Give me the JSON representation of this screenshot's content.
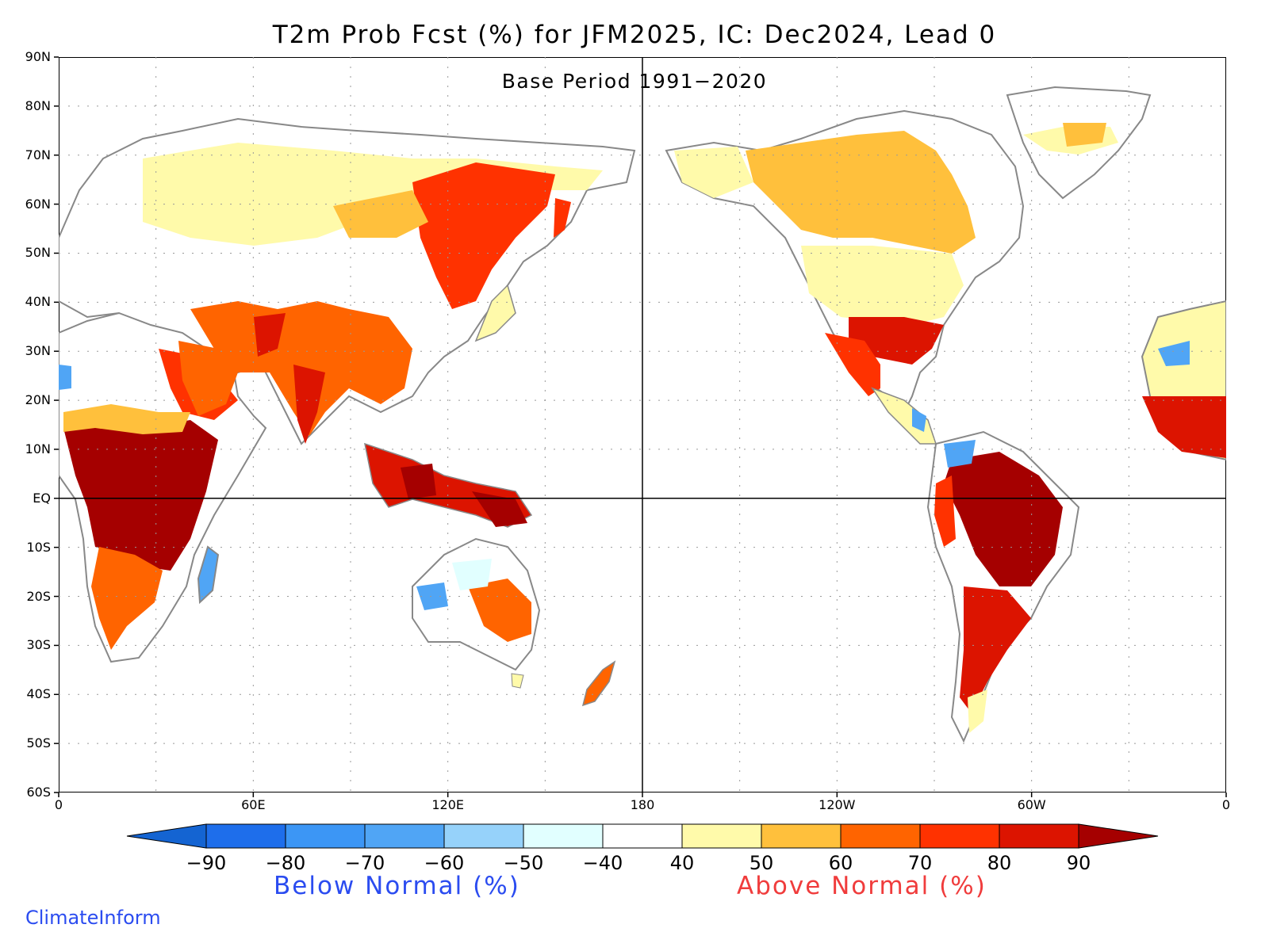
{
  "title": "T2m Prob Fcst (%) for JFM2025, IC: Dec2024, Lead 0",
  "subtitle": "Base Period 1991−2020",
  "map": {
    "projection": "equirectangular",
    "lon_range": [
      0,
      360
    ],
    "lat_range": [
      -60,
      90
    ],
    "lat_ticks": [
      "90N",
      "80N",
      "70N",
      "60N",
      "50N",
      "40N",
      "30N",
      "20N",
      "10N",
      "EQ",
      "10S",
      "20S",
      "30S",
      "40S",
      "50S",
      "60S"
    ],
    "lon_ticks": [
      "0",
      "60E",
      "120E",
      "180",
      "120W",
      "60W",
      "0"
    ],
    "gridlines": "dotted",
    "reference_lines": [
      "equator",
      "180 meridian"
    ]
  },
  "colorbar": {
    "labels": [
      "−90",
      "−80",
      "−70",
      "−60",
      "−50",
      "−40",
      "40",
      "50",
      "60",
      "70",
      "80",
      "90"
    ],
    "colors": [
      "#1464d2",
      "#1e6eeb",
      "#3c96f5",
      "#50a5f5",
      "#96d2fa",
      "#e1ffff",
      "#ffffff",
      "#fffaaa",
      "#ffc03c",
      "#ff6400",
      "#ff3200",
      "#dc1400",
      "#a50000"
    ],
    "below_label": "Below Normal (%)",
    "above_label": "Above Normal (%)",
    "below_color": "#2b4cf0",
    "above_color": "#f03c3c"
  },
  "credit": "ClimateInform",
  "credit_color": "#2b4cf0"
}
